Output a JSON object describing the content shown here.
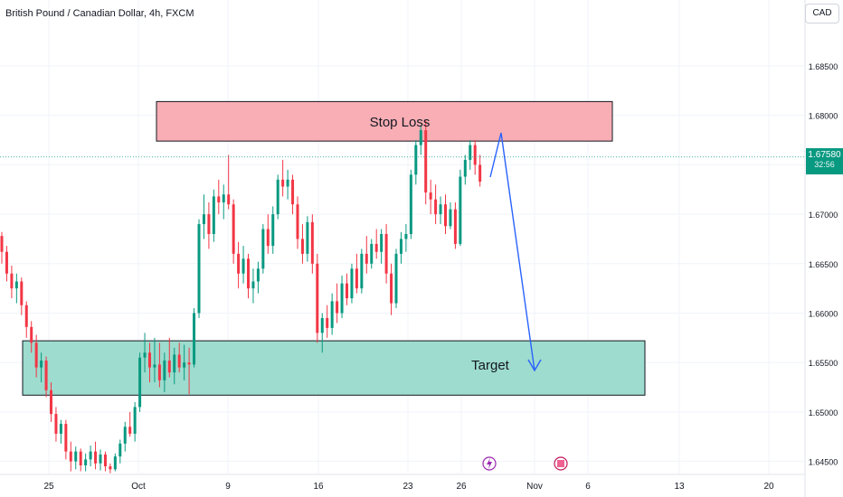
{
  "header": {
    "title": "British Pound / Canadian Dollar, 4h, FXCM",
    "currency": "CAD"
  },
  "last_price": {
    "value": "1.67580",
    "countdown": "32:56"
  },
  "colors": {
    "up": "#089981",
    "down": "#f23645",
    "stop_zone": "#f8aeb4",
    "target_zone": "#9ddcce",
    "arrow": "#2962ff"
  },
  "chart_data": {
    "type": "candlestick",
    "y_ticks": [
      "1.68500",
      "1.68000",
      "1.67500",
      "1.67000",
      "1.66500",
      "1.66000",
      "1.65500",
      "1.65000",
      "1.64500"
    ],
    "x_ticks": [
      "25",
      "Oct",
      "9",
      "16",
      "23",
      "26",
      "Nov",
      "6",
      "13",
      "20"
    ],
    "ylim": [
      1.6437,
      1.6898
    ],
    "candles": [
      [
        1.6678,
        1.6682,
        1.665,
        1.6662
      ],
      [
        1.6662,
        1.6668,
        1.6632,
        1.664
      ],
      [
        1.664,
        1.6648,
        1.6615,
        1.6625
      ],
      [
        1.6625,
        1.664,
        1.661,
        1.6632
      ],
      [
        1.6632,
        1.6636,
        1.6598,
        1.6608
      ],
      [
        1.6608,
        1.6612,
        1.6575,
        1.6586
      ],
      [
        1.6586,
        1.6592,
        1.656,
        1.657
      ],
      [
        1.657,
        1.6578,
        1.6535,
        1.6545
      ],
      [
        1.6545,
        1.656,
        1.653,
        1.6552
      ],
      [
        1.6552,
        1.6556,
        1.6515,
        1.6522
      ],
      [
        1.6522,
        1.653,
        1.649,
        1.6498
      ],
      [
        1.6498,
        1.6505,
        1.647,
        1.6478
      ],
      [
        1.6478,
        1.6492,
        1.6468,
        1.6488
      ],
      [
        1.6488,
        1.6492,
        1.6452,
        1.646
      ],
      [
        1.646,
        1.647,
        1.644,
        1.645
      ],
      [
        1.645,
        1.6465,
        1.6442,
        1.646
      ],
      [
        1.646,
        1.6463,
        1.644,
        1.6446
      ],
      [
        1.6446,
        1.6458,
        1.644,
        1.6452
      ],
      [
        1.6452,
        1.6466,
        1.6445,
        1.646
      ],
      [
        1.646,
        1.647,
        1.6442,
        1.6448
      ],
      [
        1.6448,
        1.6462,
        1.6441,
        1.6457
      ],
      [
        1.6457,
        1.646,
        1.644,
        1.6445
      ],
      [
        1.6445,
        1.6448,
        1.6438,
        1.6442
      ],
      [
        1.6442,
        1.6458,
        1.644,
        1.6455
      ],
      [
        1.6455,
        1.6472,
        1.6448,
        1.6468
      ],
      [
        1.6468,
        1.649,
        1.646,
        1.6485
      ],
      [
        1.6485,
        1.65,
        1.6475,
        1.6478
      ],
      [
        1.6478,
        1.651,
        1.647,
        1.6505
      ],
      [
        1.6505,
        1.656,
        1.65,
        1.6555
      ],
      [
        1.6555,
        1.658,
        1.654,
        1.656
      ],
      [
        1.656,
        1.657,
        1.653,
        1.6545
      ],
      [
        1.6545,
        1.6575,
        1.653,
        1.6548
      ],
      [
        1.6548,
        1.657,
        1.6525,
        1.6532
      ],
      [
        1.6532,
        1.656,
        1.652,
        1.6552
      ],
      [
        1.6552,
        1.6575,
        1.6535,
        1.654
      ],
      [
        1.654,
        1.6565,
        1.6528,
        1.6558
      ],
      [
        1.6558,
        1.657,
        1.654,
        1.6545
      ],
      [
        1.6545,
        1.6568,
        1.6532,
        1.655
      ],
      [
        1.655,
        1.6565,
        1.6518,
        1.6548
      ],
      [
        1.6548,
        1.6605,
        1.6545,
        1.66
      ],
      [
        1.66,
        1.6695,
        1.6595,
        1.669
      ],
      [
        1.669,
        1.672,
        1.6675,
        1.67
      ],
      [
        1.67,
        1.6712,
        1.6665,
        1.668
      ],
      [
        1.668,
        1.6725,
        1.6672,
        1.6718
      ],
      [
        1.6718,
        1.6735,
        1.67,
        1.6712
      ],
      [
        1.6712,
        1.673,
        1.6695,
        1.672
      ],
      [
        1.672,
        1.676,
        1.6705,
        1.671
      ],
      [
        1.671,
        1.6715,
        1.665,
        1.666
      ],
      [
        1.666,
        1.6672,
        1.6625,
        1.664
      ],
      [
        1.664,
        1.6668,
        1.663,
        1.6655
      ],
      [
        1.6655,
        1.666,
        1.6615,
        1.6625
      ],
      [
        1.6625,
        1.6645,
        1.661,
        1.6632
      ],
      [
        1.6632,
        1.6652,
        1.662,
        1.6645
      ],
      [
        1.6645,
        1.669,
        1.664,
        1.6685
      ],
      [
        1.6685,
        1.67,
        1.666,
        1.6668
      ],
      [
        1.6668,
        1.6708,
        1.666,
        1.67
      ],
      [
        1.67,
        1.674,
        1.6695,
        1.6735
      ],
      [
        1.6735,
        1.6755,
        1.6718,
        1.6728
      ],
      [
        1.6728,
        1.6745,
        1.6715,
        1.6735
      ],
      [
        1.6735,
        1.674,
        1.67,
        1.671
      ],
      [
        1.671,
        1.6718,
        1.6665,
        1.6675
      ],
      [
        1.6675,
        1.669,
        1.665,
        1.666
      ],
      [
        1.666,
        1.6698,
        1.6652,
        1.6692
      ],
      [
        1.6692,
        1.67,
        1.664,
        1.665
      ],
      [
        1.665,
        1.666,
        1.657,
        1.658
      ],
      [
        1.658,
        1.66,
        1.656,
        1.6595
      ],
      [
        1.6595,
        1.6608,
        1.6575,
        1.6585
      ],
      [
        1.6585,
        1.662,
        1.6578,
        1.6612
      ],
      [
        1.6612,
        1.663,
        1.659,
        1.66
      ],
      [
        1.66,
        1.6638,
        1.6595,
        1.663
      ],
      [
        1.663,
        1.664,
        1.6608,
        1.6615
      ],
      [
        1.6615,
        1.665,
        1.661,
        1.6645
      ],
      [
        1.6645,
        1.666,
        1.662,
        1.6625
      ],
      [
        1.6625,
        1.6665,
        1.662,
        1.666
      ],
      [
        1.666,
        1.6678,
        1.664,
        1.665
      ],
      [
        1.665,
        1.6675,
        1.6645,
        1.667
      ],
      [
        1.667,
        1.6685,
        1.6655,
        1.6662
      ],
      [
        1.6662,
        1.6685,
        1.665,
        1.668
      ],
      [
        1.668,
        1.669,
        1.663,
        1.664
      ],
      [
        1.664,
        1.665,
        1.6598,
        1.661
      ],
      [
        1.661,
        1.6665,
        1.6605,
        1.666
      ],
      [
        1.666,
        1.6682,
        1.665,
        1.6675
      ],
      [
        1.6675,
        1.669,
        1.6662,
        1.668
      ],
      [
        1.668,
        1.6745,
        1.6675,
        1.674
      ],
      [
        1.674,
        1.6775,
        1.673,
        1.677
      ],
      [
        1.677,
        1.679,
        1.676,
        1.6785
      ],
      [
        1.6785,
        1.6795,
        1.671,
        1.6722
      ],
      [
        1.6722,
        1.6735,
        1.67,
        1.6715
      ],
      [
        1.6715,
        1.673,
        1.669,
        1.67
      ],
      [
        1.67,
        1.6718,
        1.669,
        1.671
      ],
      [
        1.671,
        1.672,
        1.668,
        1.6688
      ],
      [
        1.6688,
        1.6712,
        1.6685,
        1.6705
      ],
      [
        1.6705,
        1.6712,
        1.6665,
        1.667
      ],
      [
        1.667,
        1.6745,
        1.6668,
        1.6738
      ],
      [
        1.6738,
        1.676,
        1.673,
        1.6755
      ],
      [
        1.6755,
        1.6775,
        1.6745,
        1.677
      ],
      [
        1.677,
        1.6775,
        1.674,
        1.675
      ],
      [
        1.675,
        1.676,
        1.6728,
        1.6733
      ]
    ],
    "annotations": [
      {
        "label": "Stop Loss",
        "from": 1.6774,
        "to": 1.6814
      },
      {
        "label": "Target",
        "from": 1.6517,
        "to": 1.6572
      }
    ]
  }
}
